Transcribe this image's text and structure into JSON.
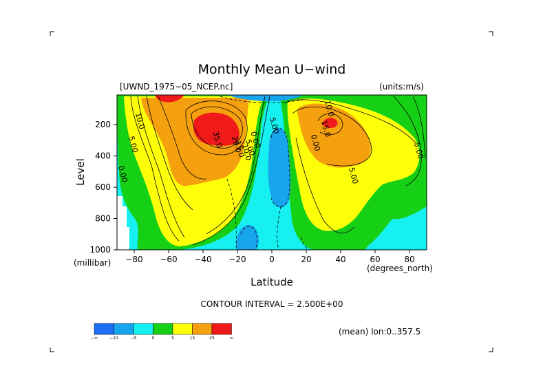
{
  "chart_data": {
    "type": "heatmap",
    "title": "Monthly Mean U−wind",
    "source_label": "[UWND_1975−05_NCEP.nc]",
    "units_label": "(units:m/s)",
    "xlabel": "Latitude",
    "x_unit_label": "(degrees_north)",
    "ylabel": "Level",
    "y_unit_label": "(millibar)",
    "xlim": [
      -90,
      90
    ],
    "ylim": [
      1000,
      10
    ],
    "x_ticks": [
      -80,
      -60,
      -40,
      -20,
      0,
      20,
      40,
      60,
      80
    ],
    "y_ticks": [
      200,
      400,
      600,
      800,
      1000
    ],
    "contour_interval_text": "CONTOUR INTERVAL = 2.500E+00",
    "mean_note": "(mean) lon:0..357.5",
    "colorbar": {
      "ticks": [
        "−∞",
        "−10",
        "−5",
        "0",
        "5",
        "15",
        "25",
        "∞"
      ],
      "colors": [
        "#1e6ef5",
        "#17a5ee",
        "#16f0f0",
        "#16d016",
        "#ffff0a",
        "#f5a00e",
        "#f01a1a"
      ]
    },
    "contour_labels": [
      {
        "text": "10.0",
        "lat": -78,
        "level": 180
      },
      {
        "text": "5.00",
        "lat": -82,
        "level": 330
      },
      {
        "text": "0.00",
        "lat": -88,
        "level": 520
      },
      {
        "text": "35.0",
        "lat": -33,
        "level": 300
      },
      {
        "text": "20.0",
        "lat": -22,
        "level": 330
      },
      {
        "text": "15.0",
        "lat": -20,
        "level": 360
      },
      {
        "text": "10.0",
        "lat": -16,
        "level": 380
      },
      {
        "text": "5.00",
        "lat": -14,
        "level": 350
      },
      {
        "text": "0.00",
        "lat": -11,
        "level": 300
      },
      {
        "text": "5.00",
        "lat": 0,
        "level": 210
      },
      {
        "text": "0.00",
        "lat": 24,
        "level": 320
      },
      {
        "text": "10.0",
        "lat": 32,
        "level": 100
      },
      {
        "text": "15.0",
        "lat": 30,
        "level": 230
      },
      {
        "text": "5.00",
        "lat": 46,
        "level": 530
      },
      {
        "text": "5.00",
        "lat": 84,
        "level": 370
      }
    ],
    "jets": [
      {
        "name": "southern",
        "core_lat": -30,
        "core_level": 200,
        "max_band": ">25"
      },
      {
        "name": "northern",
        "core_lat": 33,
        "core_level": 190,
        "max_band": ">25"
      }
    ]
  }
}
